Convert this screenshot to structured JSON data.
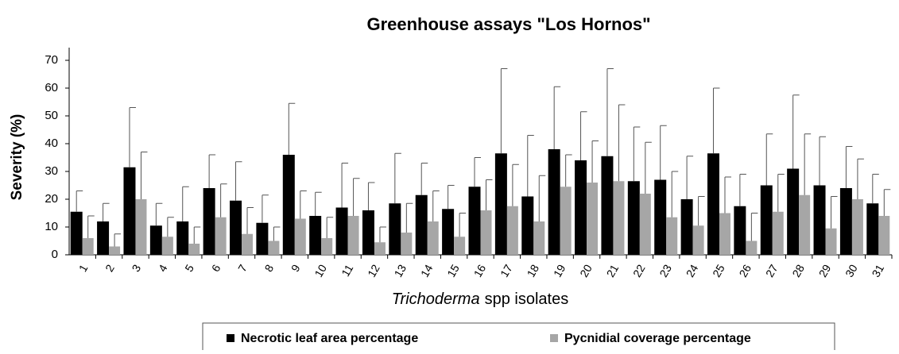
{
  "chart_data": {
    "type": "bar",
    "title": "Greenhouse assays \"Los Hornos\"",
    "y_label": "Severity (%)",
    "x_label": [
      "Trichoderma",
      "spp isolates"
    ],
    "categories": [
      "1",
      "2",
      "3",
      "4",
      "5",
      "6",
      "7",
      "8",
      "9",
      "10",
      "11",
      "12",
      "13",
      "14",
      "15",
      "16",
      "17",
      "18",
      "19",
      "20",
      "21",
      "22",
      "23",
      "24",
      "25",
      "26",
      "27",
      "28",
      "29",
      "30",
      "31"
    ],
    "series": [
      {
        "name": "Necrotic leaf area percentage",
        "color": "#000000",
        "values": [
          15.5,
          12,
          31.5,
          10.5,
          12,
          24,
          19.5,
          11.5,
          36,
          14,
          17,
          16,
          18.5,
          21.5,
          16.5,
          24.5,
          36.5,
          21,
          38,
          34,
          35.5,
          26.5,
          27,
          20,
          36.5,
          17.5,
          25,
          31,
          25,
          24,
          18.5
        ],
        "errors": [
          7.5,
          6.5,
          21.5,
          8,
          12.5,
          12,
          14,
          10,
          18.5,
          8.5,
          16,
          10,
          18,
          11.5,
          8.5,
          10.5,
          30.5,
          22,
          22.5,
          17.5,
          31.5,
          19.5,
          19.5,
          15.5,
          23.5,
          11.5,
          18.5,
          26.5,
          17.5,
          15,
          10.5
        ]
      },
      {
        "name": "Pycnidial coverage percentage",
        "color": "#a6a6a6",
        "values": [
          6,
          3,
          20,
          6.5,
          4,
          13.5,
          7.5,
          5,
          13,
          6,
          14,
          4.5,
          8,
          12,
          6.5,
          16,
          17.5,
          12,
          24.5,
          26,
          26.5,
          22,
          13.5,
          10.5,
          15,
          5,
          15.5,
          21.5,
          9.5,
          20,
          14
        ],
        "errors": [
          8,
          4.5,
          17,
          7,
          6,
          12,
          9.5,
          5,
          10,
          7.5,
          13.5,
          5.5,
          10.5,
          11,
          8.5,
          11,
          15,
          16.5,
          11.5,
          15,
          27.5,
          18.5,
          16.5,
          10.5,
          13,
          10,
          13.5,
          22,
          11.5,
          14.5,
          9.5
        ]
      }
    ],
    "ylim": [
      0,
      70
    ],
    "yticks": [
      0,
      10,
      20,
      30,
      40,
      50,
      60,
      70
    ],
    "grid": false,
    "legend": "bottom"
  }
}
